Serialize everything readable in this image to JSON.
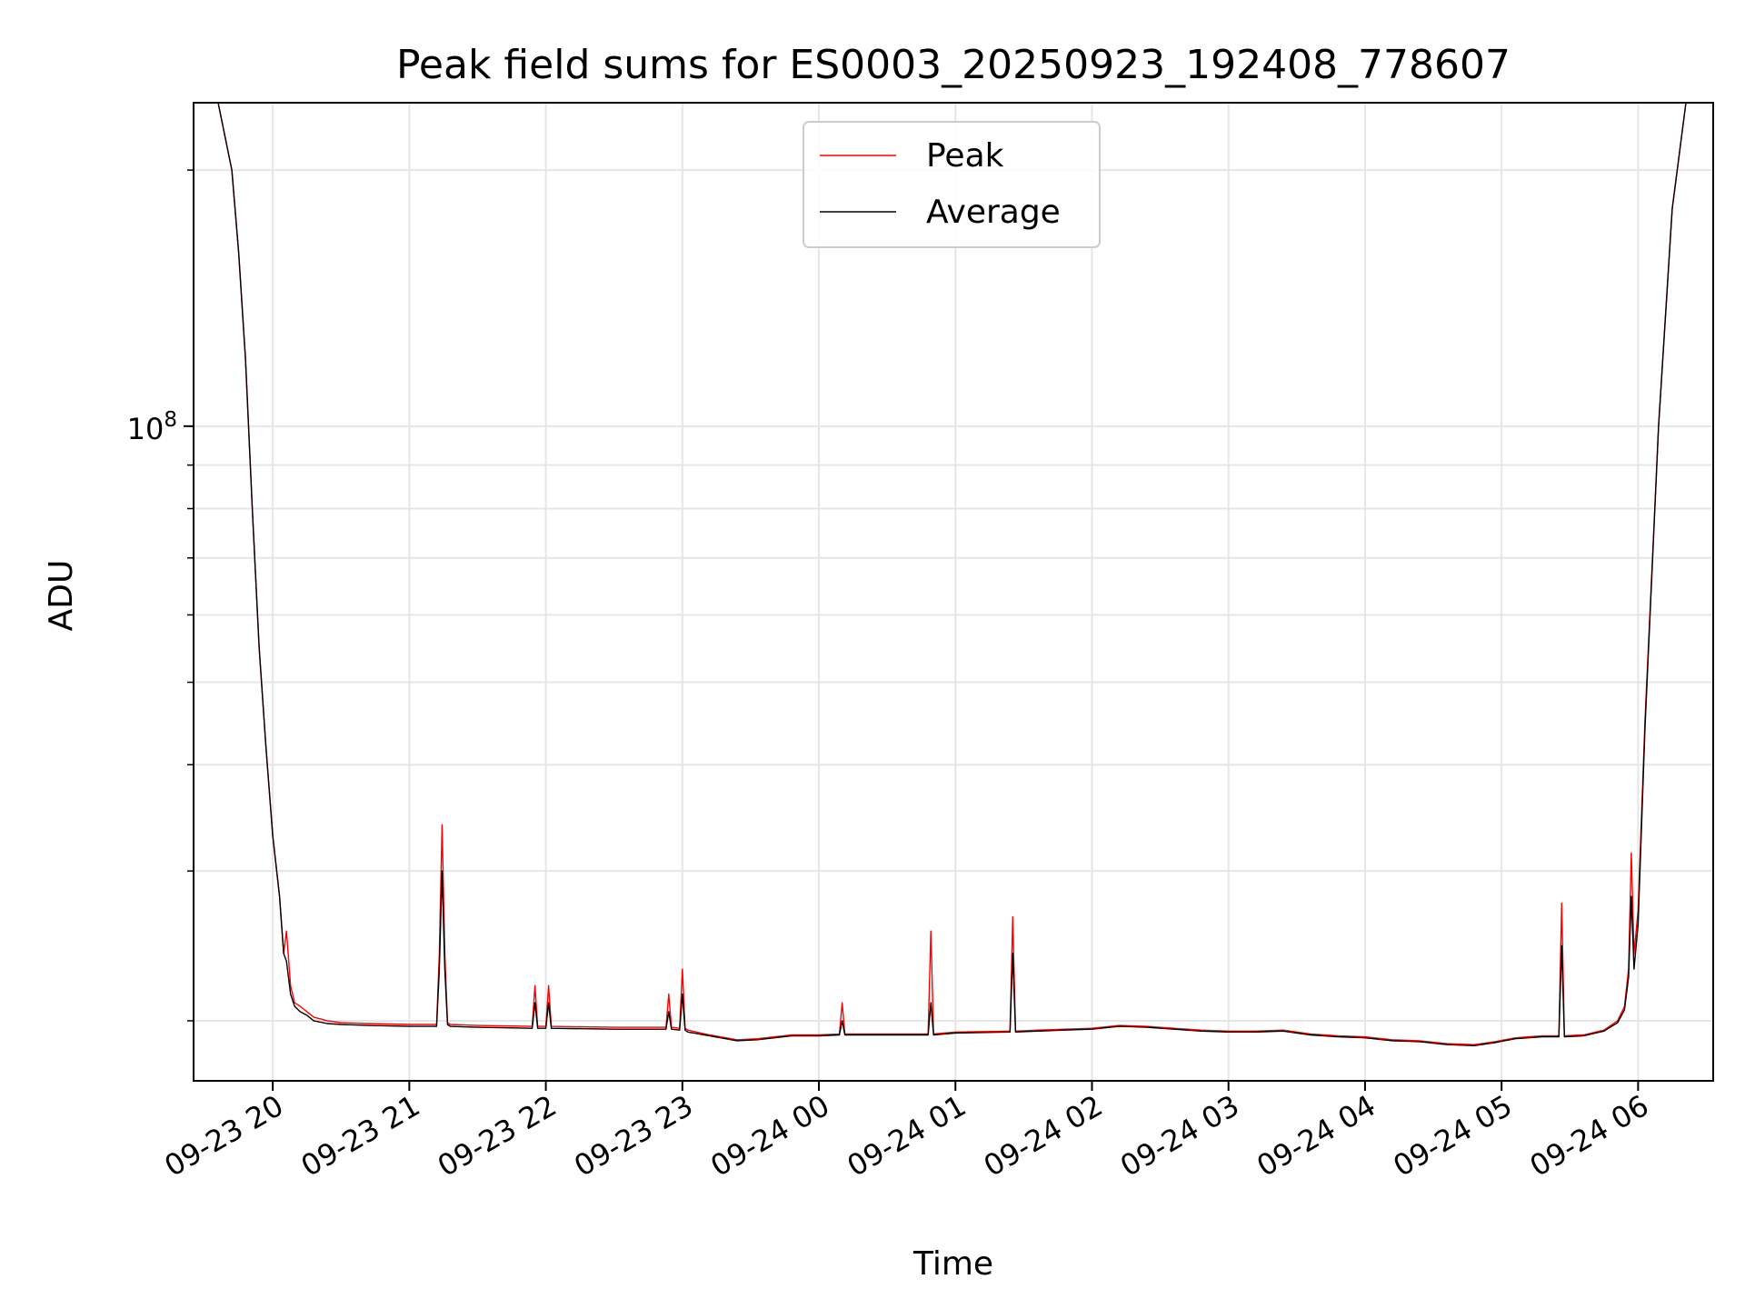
{
  "chart_data": {
    "type": "line",
    "title": "Peak field sums for ES0003_20250923_192408_778607",
    "xlabel": "Time",
    "ylabel": "ADU",
    "yscale": "log",
    "x_unit": "hours since 2025-09-23 00:00",
    "xlim": [
      19.42,
      30.55
    ],
    "ylim": [
      17000000,
      240000000
    ],
    "x_ticks": [
      {
        "value": 20,
        "label": "09-23 20"
      },
      {
        "value": 21,
        "label": "09-23 21"
      },
      {
        "value": 22,
        "label": "09-23 22"
      },
      {
        "value": 23,
        "label": "09-23 23"
      },
      {
        "value": 24,
        "label": "09-24 00"
      },
      {
        "value": 25,
        "label": "09-24 01"
      },
      {
        "value": 26,
        "label": "09-24 02"
      },
      {
        "value": 27,
        "label": "09-24 03"
      },
      {
        "value": 28,
        "label": "09-24 04"
      },
      {
        "value": 29,
        "label": "09-24 05"
      },
      {
        "value": 30,
        "label": "09-24 06"
      }
    ],
    "y_ticks": [
      {
        "value": 100000000,
        "base": "10",
        "exp": "8"
      }
    ],
    "y_minor_ticks": [
      20000000,
      30000000,
      40000000,
      50000000,
      60000000,
      70000000,
      80000000,
      90000000,
      200000000
    ],
    "grid": true,
    "legend_position": "top-center",
    "series": [
      {
        "name": "Peak",
        "color": "#ff0000",
        "x": [
          19.6,
          19.7,
          19.75,
          19.8,
          19.85,
          19.9,
          19.95,
          20.0,
          20.05,
          20.08,
          20.1,
          20.13,
          20.16,
          20.2,
          20.25,
          20.3,
          20.4,
          20.5,
          20.7,
          21.0,
          21.2,
          21.22,
          21.24,
          21.26,
          21.28,
          21.3,
          21.5,
          21.9,
          21.92,
          21.94,
          22.0,
          22.02,
          22.04,
          22.5,
          22.88,
          22.9,
          22.92,
          22.98,
          23.0,
          23.02,
          23.04,
          23.2,
          23.4,
          23.55,
          23.8,
          24.0,
          24.15,
          24.17,
          24.19,
          24.5,
          24.8,
          24.82,
          24.84,
          25.0,
          25.4,
          25.42,
          25.44,
          25.6,
          25.8,
          26.0,
          26.2,
          26.4,
          26.6,
          26.8,
          27.0,
          27.2,
          27.4,
          27.6,
          27.8,
          28.0,
          28.2,
          28.4,
          28.6,
          28.8,
          28.95,
          29.1,
          29.3,
          29.42,
          29.44,
          29.46,
          29.6,
          29.75,
          29.85,
          29.9,
          29.93,
          29.95,
          29.97,
          30.0,
          30.05,
          30.15,
          30.25,
          30.35
        ],
        "values": [
          240000000,
          200000000,
          160000000,
          120000000,
          80000000,
          55000000,
          42000000,
          33000000,
          28000000,
          24000000,
          25500000,
          22000000,
          21000000,
          20800000,
          20500000,
          20200000,
          20000000,
          19900000,
          19850000,
          19800000,
          19800000,
          24000000,
          34000000,
          24000000,
          19900000,
          19800000,
          19750000,
          19700000,
          22000000,
          19700000,
          19700000,
          22000000,
          19700000,
          19650000,
          19650000,
          21500000,
          19650000,
          19600000,
          23000000,
          19600000,
          19500000,
          19250000,
          19000000,
          19050000,
          19250000,
          19250000,
          19300000,
          21000000,
          19300000,
          19300000,
          19300000,
          25500000,
          19300000,
          19400000,
          19450000,
          26500000,
          19450000,
          19500000,
          19550000,
          19600000,
          19750000,
          19700000,
          19600000,
          19500000,
          19450000,
          19450000,
          19500000,
          19300000,
          19200000,
          19150000,
          19000000,
          18950000,
          18800000,
          18750000,
          18900000,
          19100000,
          19200000,
          19200000,
          27500000,
          19200000,
          19250000,
          19500000,
          20000000,
          20800000,
          23000000,
          31500000,
          24000000,
          27000000,
          45000000,
          100000000,
          180000000,
          240000000
        ]
      },
      {
        "name": "Average",
        "color": "#000000",
        "x": [
          19.6,
          19.7,
          19.75,
          19.8,
          19.85,
          19.9,
          19.95,
          20.0,
          20.05,
          20.08,
          20.1,
          20.13,
          20.16,
          20.2,
          20.25,
          20.3,
          20.4,
          20.5,
          20.7,
          21.0,
          21.2,
          21.22,
          21.24,
          21.26,
          21.28,
          21.3,
          21.5,
          21.9,
          21.92,
          21.94,
          22.0,
          22.02,
          22.04,
          22.5,
          22.88,
          22.9,
          22.92,
          22.98,
          23.0,
          23.02,
          23.04,
          23.2,
          23.4,
          23.55,
          23.8,
          24.0,
          24.15,
          24.17,
          24.19,
          24.5,
          24.8,
          24.82,
          24.84,
          25.0,
          25.4,
          25.42,
          25.44,
          25.6,
          25.8,
          26.0,
          26.2,
          26.4,
          26.6,
          26.8,
          27.0,
          27.2,
          27.4,
          27.6,
          27.8,
          28.0,
          28.2,
          28.4,
          28.6,
          28.8,
          28.95,
          29.1,
          29.3,
          29.42,
          29.44,
          29.46,
          29.6,
          29.75,
          29.85,
          29.9,
          29.93,
          29.95,
          29.97,
          30.0,
          30.05,
          30.15,
          30.25,
          30.35
        ],
        "values": [
          240000000,
          200000000,
          160000000,
          120000000,
          80000000,
          55000000,
          42000000,
          33000000,
          28000000,
          24000000,
          23500000,
          21500000,
          20800000,
          20500000,
          20300000,
          20000000,
          19850000,
          19800000,
          19750000,
          19700000,
          19700000,
          23000000,
          30000000,
          23000000,
          19800000,
          19700000,
          19650000,
          19600000,
          21000000,
          19600000,
          19600000,
          21000000,
          19600000,
          19550000,
          19550000,
          20500000,
          19550000,
          19500000,
          21500000,
          19500000,
          19400000,
          19200000,
          18950000,
          19000000,
          19200000,
          19200000,
          19250000,
          20000000,
          19250000,
          19250000,
          19250000,
          21000000,
          19250000,
          19350000,
          19400000,
          24000000,
          19400000,
          19450000,
          19500000,
          19550000,
          19700000,
          19650000,
          19550000,
          19450000,
          19400000,
          19400000,
          19450000,
          19250000,
          19150000,
          19100000,
          18950000,
          18900000,
          18750000,
          18700000,
          18850000,
          19050000,
          19150000,
          19150000,
          24500000,
          19150000,
          19200000,
          19450000,
          19900000,
          20600000,
          22500000,
          28000000,
          23000000,
          26000000,
          44000000,
          100000000,
          180000000,
          240000000
        ]
      }
    ]
  }
}
